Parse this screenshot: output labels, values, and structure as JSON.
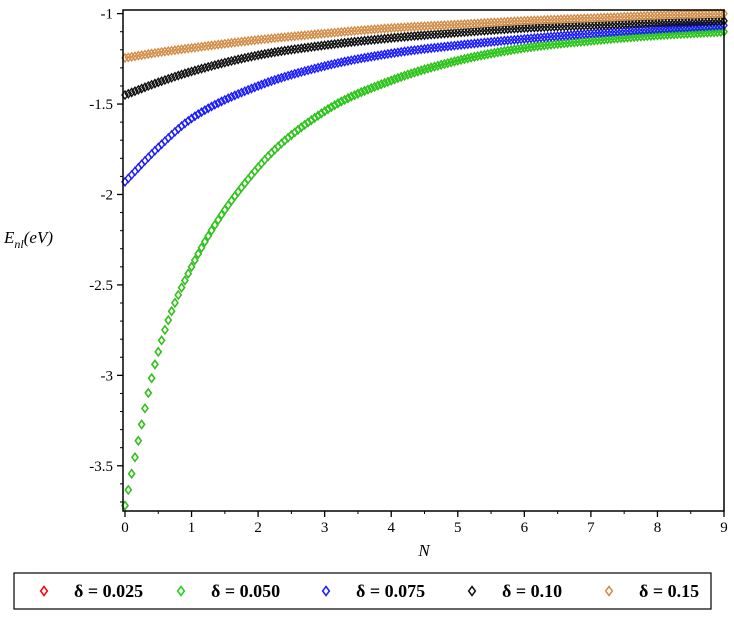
{
  "chart_data": {
    "type": "scatter",
    "xlabel": "N",
    "ylabel_main": "E",
    "ylabel_sub": "nl",
    "ylabel_unit": "(eV)",
    "xlim": [
      0,
      9
    ],
    "ylim": [
      -3.75,
      -0.98
    ],
    "x_ticks": [
      0,
      1,
      2,
      3,
      4,
      5,
      6,
      7,
      8,
      9
    ],
    "x_tick_labels": [
      "0",
      "1",
      "2",
      "3",
      "4",
      "5",
      "6",
      "7",
      "8",
      "9"
    ],
    "y_ticks": [
      -1,
      -1.5,
      -2,
      -2.5,
      -3,
      -3.5
    ],
    "y_tick_labels": [
      "-1",
      "-1.5",
      "-2",
      "-2.5",
      "-3",
      "-3.5"
    ],
    "grid": false,
    "legend_position": "bottom",
    "marker": "diamond",
    "x": [
      0,
      0.5,
      1,
      2,
      3,
      4,
      5,
      6,
      7,
      8,
      9
    ],
    "series": [
      {
        "name": "δ = 0.025",
        "color": "#ff0000",
        "values": [
          -3.72,
          -2.87,
          -2.4,
          -1.85,
          -1.54,
          -1.37,
          -1.26,
          -1.19,
          -1.15,
          -1.12,
          -1.1
        ]
      },
      {
        "name": "δ = 0.050",
        "color": "#19d219",
        "values": [
          -3.72,
          -2.87,
          -2.4,
          -1.85,
          -1.54,
          -1.37,
          -1.26,
          -1.19,
          -1.15,
          -1.12,
          -1.1
        ]
      },
      {
        "name": "δ = 0.075",
        "color": "#1a1aff",
        "values": [
          -1.93,
          -1.74,
          -1.58,
          -1.4,
          -1.29,
          -1.22,
          -1.175,
          -1.14,
          -1.11,
          -1.085,
          -1.065
        ]
      },
      {
        "name": "δ = 0.10",
        "color": "#111111",
        "values": [
          -1.45,
          -1.38,
          -1.32,
          -1.23,
          -1.175,
          -1.135,
          -1.105,
          -1.08,
          -1.065,
          -1.05,
          -1.04
        ]
      },
      {
        "name": "δ = 0.15",
        "color": "#d28c46",
        "values": [
          -1.245,
          -1.215,
          -1.19,
          -1.145,
          -1.11,
          -1.08,
          -1.06,
          -1.04,
          -1.025,
          -1.01,
          -1.0
        ]
      }
    ]
  }
}
